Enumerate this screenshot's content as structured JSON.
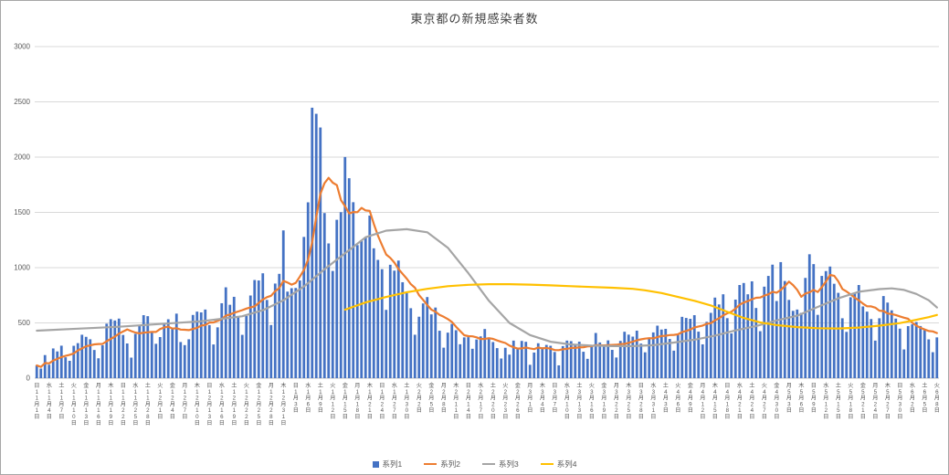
{
  "chart_data": {
    "type": "combo",
    "title": "東京都の新規感染者数",
    "y_axis": {
      "min": 0,
      "max": 3000,
      "step": 500,
      "tick_labels": [
        "0",
        "500",
        "1000",
        "1500",
        "2000",
        "2500",
        "3000"
      ]
    },
    "x_axis": {
      "label_every_n_days": 3,
      "start_label": "11月1日",
      "end_label": "6月8日",
      "tick_labels": [
        "日|11月1日",
        "水|11月4日",
        "土|11月7日",
        "火|11月10日",
        "金|11月13日",
        "月|11月16日",
        "木|11月19日",
        "日|11月22日",
        "水|11月25日",
        "土|11月28日",
        "火|12月1日",
        "金|12月4日",
        "月|12月7日",
        "木|12月10日",
        "日|12月13日",
        "水|12月16日",
        "土|12月19日",
        "火|12月22日",
        "金|12月25日",
        "月|12月28日",
        "木|12月31日",
        "日|1月3日",
        "水|1月6日",
        "土|1月9日",
        "火|1月12日",
        "金|1月15日",
        "月|1月18日",
        "木|1月21日",
        "日|1月24日",
        "水|1月27日",
        "土|1月30日",
        "火|2月2日",
        "金|2月5日",
        "月|2月8日",
        "木|2月11日",
        "日|2月14日",
        "水|2月17日",
        "土|2月20日",
        "火|2月23日",
        "金|2月26日",
        "月|3月1日",
        "木|3月4日",
        "日|3月7日",
        "水|3月10日",
        "土|3月13日",
        "火|3月16日",
        "金|3月19日",
        "月|3月22日",
        "木|3月25日",
        "日|3月28日",
        "水|3月31日",
        "土|4月3日",
        "火|4月6日",
        "金|4月9日",
        "月|4月12日",
        "木|4月15日",
        "日|4月18日",
        "水|4月21日",
        "土|4月24日",
        "火|4月27日",
        "金|4月30日",
        "月|5月3日",
        "木|5月6日",
        "日|5月9日",
        "水|5月12日",
        "土|5月15日",
        "火|5月18日",
        "金|5月21日",
        "月|5月24日",
        "木|5月27日",
        "日|5月30日",
        "水|6月2日",
        "土|6月5日",
        "火|6月8日"
      ]
    },
    "series": [
      {
        "name": "系列1",
        "type": "bar",
        "color": "#4472C4",
        "values": [
          116,
          87,
          209,
          122,
          269,
          242,
          294,
          189,
          157,
          293,
          317,
          393,
          374,
          352,
          255,
          180,
          298,
          493,
          534,
          522,
          539,
          391,
          314,
          186,
          401,
          481,
          570,
          561,
          418,
          311,
          372,
          500,
          533,
          449,
          584,
          327,
          299,
          352,
          572,
          602,
          595,
          621,
          480,
          305,
          460,
          678,
          822,
          664,
          736,
          556,
          392,
          563,
          748,
          888,
          884,
          949,
          708,
          481,
          856,
          944,
          1337,
          783,
          814,
          816,
          884,
          1278,
          1591,
          2447,
          2392,
          2268,
          1494,
          1219,
          970,
          1433,
          1502,
          2001,
          1809,
          1592,
          1204,
          1240,
          1274,
          1471,
          1175,
          1070,
          986,
          618,
          1026,
          973,
          1064,
          868,
          769,
          633,
          393,
          556,
          676,
          734,
          577,
          639,
          429,
          276,
          412,
          491,
          434,
          307,
          369,
          371,
          266,
          350,
          378,
          445,
          353,
          327,
          272,
          178,
          275,
          213,
          340,
          270,
          337,
          329,
          121,
          232,
          316,
          279,
          301,
          293,
          237,
          116,
          290,
          340,
          335,
          304,
          330,
          239,
          175,
          300,
          409,
          323,
          303,
          342,
          256,
          187,
          337,
          420,
          394,
          376,
          430,
          313,
          234,
          364,
          414,
          475,
          440,
          446,
          355,
          249,
          399,
          555,
          545,
          537,
          570,
          421,
          306,
          510,
          591,
          729,
          667,
          759,
          543,
          405,
          711,
          843,
          861,
          759,
          876,
          635,
          425,
          828,
          925,
          1027,
          698,
          1050,
          879,
          708,
          609,
          621,
          591,
          907,
          1121,
          1032,
          573,
          925,
          969,
          1010,
          854,
          772,
          542,
          419,
          732,
          766,
          843,
          649,
          602,
          535,
          340,
          542,
          743,
          684,
          614,
          539,
          448,
          260,
          471,
          487,
          508,
          472,
          436,
          351,
          235,
          369
        ]
      },
      {
        "name": "系列2",
        "type": "line",
        "color": "#ED7D31",
        "moving_average_of": "系列1",
        "window": 7
      },
      {
        "name": "系列3",
        "type": "line",
        "color": "#A5A5A5",
        "points": [
          [
            0,
            430
          ],
          [
            10,
            448
          ],
          [
            20,
            465
          ],
          [
            30,
            490
          ],
          [
            40,
            515
          ],
          [
            50,
            560
          ],
          [
            55,
            615
          ],
          [
            60,
            705
          ],
          [
            65,
            830
          ],
          [
            70,
            985
          ],
          [
            75,
            1130
          ],
          [
            80,
            1275
          ],
          [
            85,
            1335
          ],
          [
            90,
            1348
          ],
          [
            95,
            1320
          ],
          [
            100,
            1180
          ],
          [
            105,
            950
          ],
          [
            110,
            700
          ],
          [
            115,
            500
          ],
          [
            120,
            390
          ],
          [
            125,
            330
          ],
          [
            130,
            305
          ],
          [
            135,
            295
          ],
          [
            140,
            290
          ],
          [
            145,
            290
          ],
          [
            150,
            298
          ],
          [
            155,
            322
          ],
          [
            160,
            348
          ],
          [
            165,
            385
          ],
          [
            170,
            432
          ],
          [
            175,
            472
          ],
          [
            180,
            522
          ],
          [
            185,
            565
          ],
          [
            190,
            645
          ],
          [
            195,
            722
          ],
          [
            200,
            782
          ],
          [
            205,
            806
          ],
          [
            208,
            812
          ],
          [
            211,
            798
          ],
          [
            214,
            762
          ],
          [
            217,
            705
          ],
          [
            219,
            640
          ]
        ]
      },
      {
        "name": "系列4",
        "type": "line",
        "color": "#FFC000",
        "points": [
          [
            75,
            620
          ],
          [
            80,
            685
          ],
          [
            85,
            735
          ],
          [
            90,
            778
          ],
          [
            95,
            808
          ],
          [
            100,
            832
          ],
          [
            105,
            845
          ],
          [
            110,
            850
          ],
          [
            115,
            850
          ],
          [
            120,
            846
          ],
          [
            125,
            840
          ],
          [
            130,
            832
          ],
          [
            135,
            825
          ],
          [
            140,
            818
          ],
          [
            145,
            808
          ],
          [
            148,
            795
          ],
          [
            152,
            770
          ],
          [
            156,
            735
          ],
          [
            160,
            700
          ],
          [
            164,
            658
          ],
          [
            168,
            600
          ],
          [
            172,
            545
          ],
          [
            176,
            505
          ],
          [
            180,
            480
          ],
          [
            185,
            462
          ],
          [
            190,
            452
          ],
          [
            195,
            450
          ],
          [
            200,
            458
          ],
          [
            205,
            475
          ],
          [
            210,
            498
          ],
          [
            214,
            528
          ],
          [
            217,
            552
          ],
          [
            219,
            572
          ]
        ]
      }
    ],
    "legend": {
      "position": "bottom",
      "entries": [
        "系列1",
        "系列2",
        "系列3",
        "系列4"
      ]
    }
  }
}
